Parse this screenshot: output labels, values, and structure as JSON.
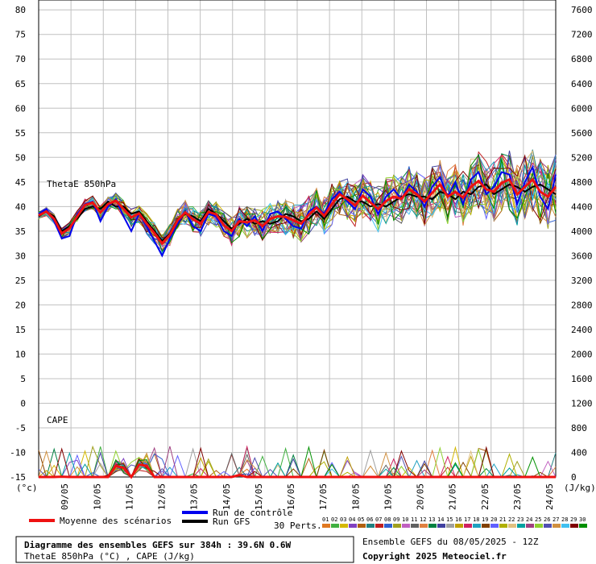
{
  "chart_data": {
    "type": "line",
    "left_axis": {
      "unit": "(°c)",
      "ylim": [
        -15,
        82
      ],
      "ticks": [
        80,
        75,
        70,
        65,
        60,
        55,
        50,
        45,
        40,
        35,
        30,
        25,
        20,
        15,
        10,
        5,
        0,
        -5,
        -10,
        -15
      ]
    },
    "right_axis": {
      "unit": "(J/kg)",
      "ticks": [
        7600,
        7200,
        6800,
        6400,
        6000,
        5600,
        5200,
        4800,
        4400,
        4000,
        3600,
        3200,
        2800,
        2400,
        2000,
        1600,
        1200,
        800,
        400,
        0
      ],
      "zero_at_left_value": -15,
      "per_left_unit": 80
    },
    "x_axis": {
      "categories": [
        "09/05",
        "10/05",
        "11/05",
        "12/05",
        "13/05",
        "14/05",
        "15/05",
        "16/05",
        "17/05",
        "18/05",
        "19/05",
        "20/05",
        "21/05",
        "22/05",
        "23/05",
        "24/05"
      ],
      "points_per_day": 4,
      "start_offset": 0
    },
    "grid": true,
    "panel_labels": {
      "thetae": "ThetaE 850hPa",
      "cape": "CAPE"
    },
    "thetae_mean": [
      38.2,
      39.0,
      37.5,
      34.5,
      35.6,
      38.0,
      40.3,
      40.8,
      38.8,
      40.5,
      41.2,
      39.5,
      37.8,
      38.6,
      36.5,
      34.6,
      32.5,
      34.2,
      37.2,
      38.8,
      37.4,
      36.5,
      38.9,
      38.4,
      36.2,
      35.0,
      37.0,
      36.8,
      37.2,
      36.0,
      37.5,
      38.0,
      37.9,
      37.2,
      36.5,
      38.3,
      39.8,
      38.1,
      40.5,
      42.5,
      41.5,
      40.2,
      42.2,
      40.8,
      39.5,
      41.1,
      42.0,
      41.6,
      43.5,
      42.5,
      41.0,
      42.8,
      44.5,
      42.0,
      43.0,
      41.8,
      44.0,
      45.2,
      43.5,
      43.0,
      44.8,
      45.5,
      42.5,
      44.0,
      45.5,
      43.0,
      42.0,
      44.0
    ],
    "thetae_control": [
      38.5,
      39.5,
      37.0,
      33.5,
      34.0,
      38.5,
      40.5,
      41.0,
      37.0,
      40.0,
      41.5,
      38.0,
      35.0,
      38.5,
      36.0,
      33.0,
      30.0,
      33.5,
      36.5,
      39.0,
      36.0,
      35.0,
      38.5,
      38.0,
      35.0,
      34.0,
      37.5,
      36.0,
      38.0,
      35.0,
      38.5,
      39.0,
      37.5,
      36.0,
      35.5,
      39.0,
      40.0,
      38.5,
      41.5,
      43.0,
      41.0,
      39.5,
      43.5,
      42.0,
      38.5,
      42.0,
      43.5,
      41.5,
      44.5,
      43.0,
      40.0,
      44.0,
      46.0,
      42.0,
      45.0,
      40.5,
      45.5,
      47.0,
      42.5,
      44.0,
      47.0,
      46.5,
      40.5,
      45.0,
      48.0,
      42.0,
      39.5,
      46.5
    ],
    "thetae_gfs": [
      38.0,
      39.0,
      38.0,
      35.0,
      36.0,
      37.5,
      39.5,
      40.0,
      39.5,
      41.0,
      40.0,
      40.0,
      38.5,
      39.0,
      37.0,
      35.0,
      33.0,
      34.5,
      37.5,
      38.5,
      38.0,
      37.0,
      39.5,
      38.5,
      37.0,
      35.5,
      36.5,
      37.5,
      36.5,
      37.0,
      36.5,
      37.0,
      38.5,
      38.0,
      37.0,
      37.5,
      39.0,
      37.5,
      39.5,
      41.5,
      42.0,
      41.0,
      41.0,
      40.0,
      40.5,
      40.0,
      41.0,
      42.0,
      42.5,
      42.0,
      42.0,
      41.5,
      43.0,
      42.5,
      41.5,
      43.0,
      42.5,
      44.0,
      44.5,
      42.5,
      43.5,
      44.5,
      44.0,
      43.0,
      44.0,
      44.5,
      43.5,
      42.5
    ],
    "cape_mean": [
      0,
      0,
      0,
      5,
      0,
      0,
      0,
      0,
      0,
      0,
      180,
      150,
      0,
      200,
      180,
      0,
      0,
      0,
      0,
      0,
      0,
      0,
      0,
      0,
      0,
      0,
      30,
      0,
      0,
      0,
      0,
      0,
      0,
      0,
      0,
      0,
      0,
      0,
      0,
      0,
      0,
      0,
      0,
      0,
      0,
      0,
      0,
      0,
      0,
      0,
      0,
      0,
      0,
      0,
      0,
      0,
      0,
      0,
      0,
      0,
      0,
      0,
      0,
      0,
      0,
      0,
      0,
      0
    ],
    "legend": {
      "mean_label": "Moyenne des scénarios",
      "control_label": "Run de contrôle",
      "gfs_label": "Run GFS",
      "perts_label": "30 Perts.",
      "pert_numbers": [
        "01",
        "02",
        "03",
        "04",
        "05",
        "06",
        "07",
        "08",
        "09",
        "10",
        "11",
        "12",
        "13",
        "14",
        "15",
        "16",
        "17",
        "18",
        "19",
        "20",
        "21",
        "22",
        "23",
        "24",
        "25",
        "26",
        "27",
        "28",
        "29",
        "30"
      ]
    },
    "colors": {
      "mean": "#ee1111",
      "control": "#0000ee",
      "gfs": "#000000",
      "grid": "#c0c0c0",
      "perts": [
        "#e07820",
        "#40b040",
        "#d4b800",
        "#8040c0",
        "#b06010",
        "#208080",
        "#c02020",
        "#3060d0",
        "#a0a020",
        "#c060c0",
        "#606060",
        "#e08040",
        "#008040",
        "#4040a0",
        "#a0a0a0",
        "#c0a000",
        "#d02060",
        "#20a0c0",
        "#804000",
        "#6060ff",
        "#b0b000",
        "#e0c080",
        "#00a0a0",
        "#a04080",
        "#90d030",
        "#5050b0",
        "#d09040",
        "#40c0f0",
        "#800000",
        "#009000"
      ]
    }
  },
  "footer": {
    "title": "Diagramme des ensembles GEFS sur 384h : 39.6N 0.6W",
    "subtitle": "ThetaE 850hPa (°C) , CAPE (J/kg)",
    "ensemble": "Ensemble GEFS du 08/05/2025 - 12Z",
    "copyright": "Copyright 2025 Meteociel.fr"
  }
}
